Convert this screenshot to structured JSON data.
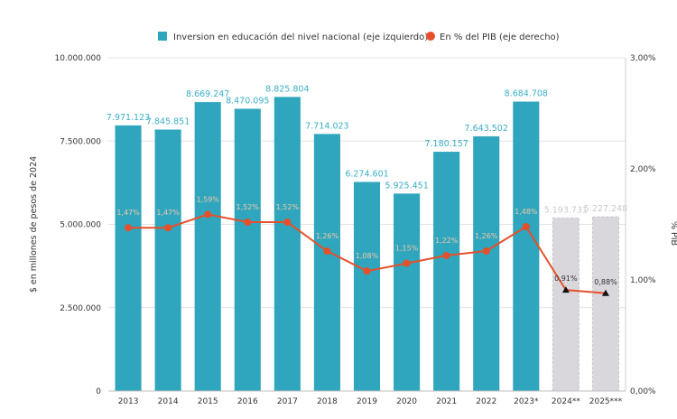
{
  "chart_data": {
    "type": "bar",
    "categories": [
      "2013",
      "2014",
      "2015",
      "2016",
      "2017",
      "2018",
      "2019",
      "2020",
      "2021",
      "2022",
      "2023*",
      "2024**",
      "2025***"
    ],
    "series": [
      {
        "name": "Inversion en educación del nivel nacional (eje izquierdo)",
        "axis": "left",
        "kind": "bar",
        "color": "#2fa6bd",
        "projected_color": "#d9d6dc",
        "values": [
          7971123,
          7845851,
          8669247,
          8470095,
          8825804,
          7714023,
          6274601,
          5925451,
          7180157,
          7643502,
          8684708,
          5193731,
          5227248
        ],
        "value_labels": [
          "7.971.123",
          "7.845.851",
          "8.669.247",
          "8.470.095",
          "8.825.804",
          "7.714.023",
          "6.274.601",
          "5.925.451",
          "7.180.157",
          "7.643.502",
          "8.684.708",
          "5.193.731",
          "5.227.248"
        ],
        "projected": [
          false,
          false,
          false,
          false,
          false,
          false,
          false,
          false,
          false,
          false,
          false,
          true,
          true
        ]
      },
      {
        "name": "En % del PIB (eje derecho)",
        "axis": "right",
        "kind": "line",
        "color": "#e5502a",
        "projected_color": "#111111",
        "values": [
          1.47,
          1.47,
          1.59,
          1.52,
          1.52,
          1.26,
          1.08,
          1.15,
          1.22,
          1.26,
          1.48,
          0.91,
          0.88
        ],
        "value_labels": [
          "1,47%",
          "1,47%",
          "1,59%",
          "1,52%",
          "1,52%",
          "1,26%",
          "1,08%",
          "1,15%",
          "1,22%",
          "1,26%",
          "1,48%",
          "0,91%",
          "0,88%"
        ]
      }
    ],
    "ylabel": "$ en millones de pesos de 2024",
    "y2label": "% PIB",
    "ylim": [
      0,
      10000000
    ],
    "y2lim": [
      0,
      3
    ],
    "yticks": [
      "0",
      "2.500.000",
      "5.000.000",
      "7.500.000",
      "10.000.000"
    ],
    "y2ticks": [
      "0,00%",
      "1,00%",
      "2,00%",
      "3,00%"
    ],
    "grid": true,
    "legend_position": "top-center"
  }
}
